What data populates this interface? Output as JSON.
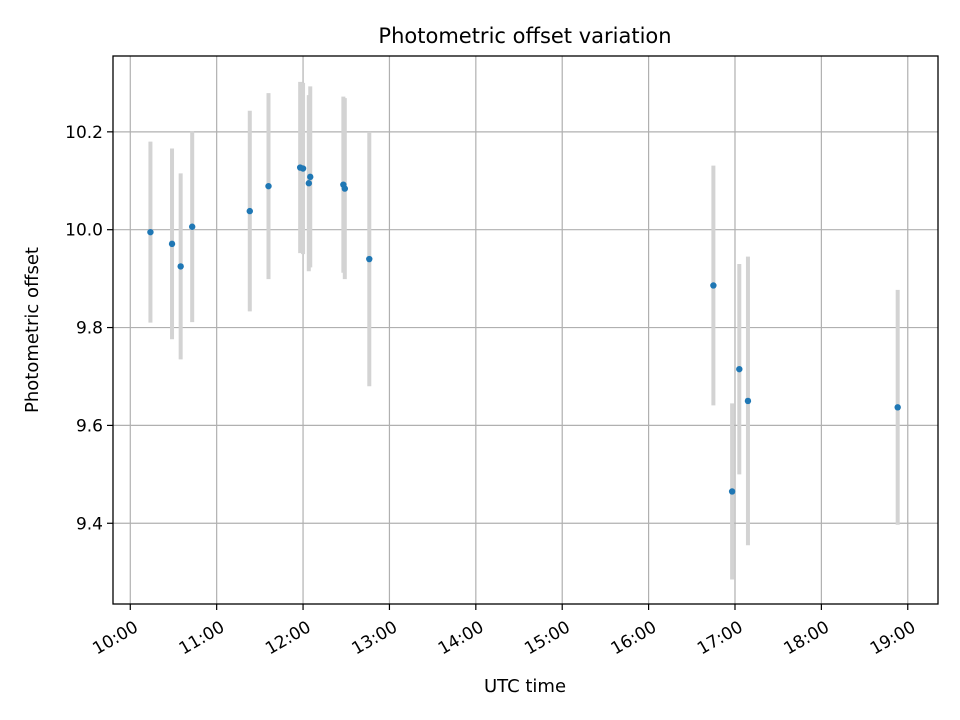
{
  "chart_data": {
    "type": "scatter",
    "title": "Photometric offset variation",
    "xlabel": "UTC time",
    "ylabel": "Photometric offset",
    "xlim": [
      "09:48",
      "19:21"
    ],
    "ylim": [
      9.235,
      10.355
    ],
    "grid": true,
    "x_ticks": [
      "10:00",
      "11:00",
      "12:00",
      "13:00",
      "14:00",
      "15:00",
      "16:00",
      "17:00",
      "18:00",
      "19:00"
    ],
    "y_ticks": [
      9.4,
      9.6,
      9.8,
      10.0,
      10.2
    ],
    "y_tick_labels": [
      "9.4",
      "9.6",
      "9.8",
      "10.0",
      "10.2"
    ],
    "colors": {
      "marker": "#1f77b4",
      "errorbar": "#d3d3d3",
      "grid": "#b0b0b0"
    },
    "points": [
      {
        "x": "10:14",
        "y": 9.995,
        "err": 0.185
      },
      {
        "x": "10:29",
        "y": 9.971,
        "err": 0.195
      },
      {
        "x": "10:35",
        "y": 9.925,
        "err": 0.19
      },
      {
        "x": "10:43",
        "y": 10.006,
        "err": 0.195
      },
      {
        "x": "11:23",
        "y": 10.038,
        "err": 0.205
      },
      {
        "x": "11:36",
        "y": 10.089,
        "err": 0.19
      },
      {
        "x": "11:58",
        "y": 10.127,
        "err": 0.175
      },
      {
        "x": "12:00",
        "y": 10.125,
        "err": 0.175
      },
      {
        "x": "12:04",
        "y": 10.095,
        "err": 0.18
      },
      {
        "x": "12:05",
        "y": 10.108,
        "err": 0.185
      },
      {
        "x": "12:28",
        "y": 10.092,
        "err": 0.18
      },
      {
        "x": "12:29",
        "y": 10.084,
        "err": 0.185
      },
      {
        "x": "12:46",
        "y": 9.94,
        "err": 0.26
      },
      {
        "x": "16:45",
        "y": 9.886,
        "err": 0.245
      },
      {
        "x": "16:58",
        "y": 9.465,
        "err": 0.18
      },
      {
        "x": "17:03",
        "y": 9.715,
        "err": 0.215
      },
      {
        "x": "17:09",
        "y": 9.65,
        "err": 0.295
      },
      {
        "x": "18:53",
        "y": 9.637,
        "err": 0.24
      }
    ]
  }
}
